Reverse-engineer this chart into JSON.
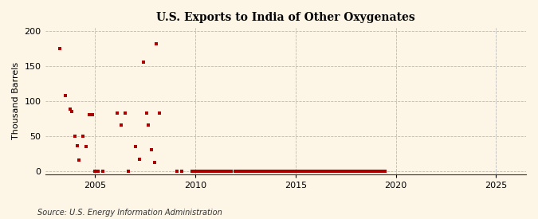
{
  "title": "U.S. Exports to India of Other Oxygenates",
  "ylabel": "Thousand Barrels",
  "source": "Source: U.S. Energy Information Administration",
  "background_color": "#fdf5e6",
  "marker_color": "#aa0000",
  "xlim": [
    2002.5,
    2026.5
  ],
  "ylim": [
    -5,
    205
  ],
  "xticks": [
    2005,
    2010,
    2015,
    2020,
    2025
  ],
  "yticks": [
    0,
    50,
    100,
    150,
    200
  ],
  "scatter_x": [
    2003.25,
    2003.5,
    2003.75,
    2003.85,
    2004.0,
    2004.1,
    2004.2,
    2004.4,
    2004.55,
    2004.7,
    2004.85,
    2005.0,
    2005.15,
    2005.4,
    2006.1,
    2006.3,
    2006.5,
    2006.65,
    2007.0,
    2007.2,
    2007.4,
    2007.55,
    2007.65,
    2007.8,
    2007.95,
    2008.05,
    2008.2,
    2009.1,
    2009.3,
    2009.85,
    2009.95,
    2010.05,
    2010.15,
    2010.25,
    2010.35,
    2010.5,
    2010.65,
    2010.78,
    2010.9,
    2011.0,
    2011.1,
    2011.2,
    2011.35,
    2011.5,
    2011.65,
    2011.8,
    2012.0,
    2012.1,
    2012.25,
    2012.4,
    2012.55,
    2012.7,
    2012.85,
    2013.0,
    2013.15,
    2013.3,
    2013.45,
    2013.6,
    2013.75,
    2013.9,
    2014.05,
    2014.2,
    2014.35,
    2014.5,
    2014.65,
    2014.8,
    2014.95,
    2015.1,
    2015.25,
    2015.4,
    2015.55,
    2015.7,
    2015.85,
    2016.0,
    2016.15,
    2016.3,
    2016.45,
    2016.6,
    2016.75,
    2016.9,
    2017.05,
    2017.2,
    2017.35,
    2017.5,
    2017.65,
    2017.8,
    2017.95,
    2018.1,
    2018.25,
    2018.4,
    2018.55,
    2018.7,
    2018.85,
    2019.0,
    2019.15,
    2019.3,
    2019.45
  ],
  "scatter_y": [
    175,
    107,
    88,
    85,
    50,
    36,
    15,
    50,
    35,
    80,
    80,
    0,
    0,
    0,
    82,
    65,
    82,
    0,
    35,
    17,
    155,
    83,
    65,
    30,
    12,
    182,
    83,
    0,
    0,
    0,
    0,
    0,
    0,
    0,
    0,
    0,
    0,
    0,
    0,
    0,
    0,
    0,
    0,
    0,
    0,
    0,
    0,
    0,
    0,
    0,
    0,
    0,
    0,
    0,
    0,
    0,
    0,
    0,
    0,
    0,
    0,
    0,
    0,
    0,
    0,
    0,
    0,
    0,
    0,
    0,
    0,
    0,
    0,
    0,
    0,
    0,
    0,
    0,
    0,
    0,
    0,
    0,
    0,
    0,
    0,
    0,
    0,
    0,
    0,
    0,
    0,
    0,
    0,
    0,
    0,
    0,
    0
  ]
}
